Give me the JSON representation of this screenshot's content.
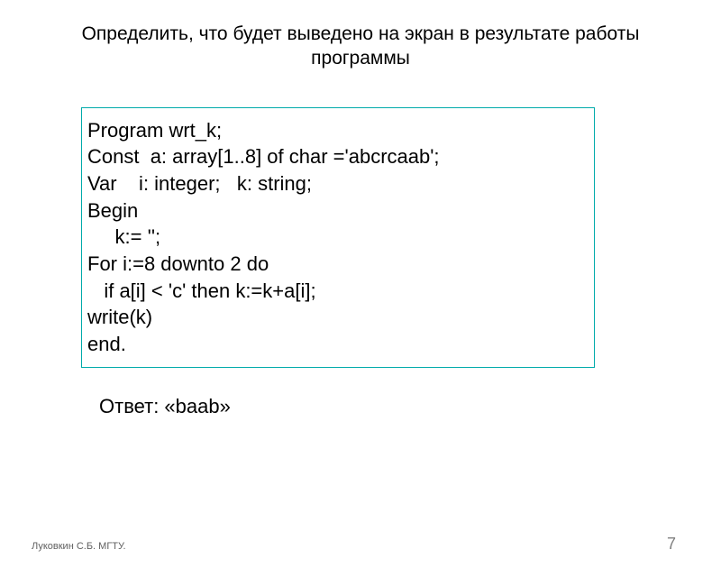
{
  "slide": {
    "title_line1": "Определить, что будет выведено на экран в результате работы",
    "title_line2": "программы",
    "title_fontsize": 21,
    "title_color": "#000000",
    "background_color": "#ffffff"
  },
  "code_box": {
    "border_color": "#00aaaa",
    "border_width": 1,
    "lines": [
      "Program wrt_k;",
      "Const  a: array[1..8] of char ='abcrcaab';",
      "Var    i: integer;   k: string;",
      "Begin",
      "     k:= '';",
      "For i:=8 downto 2 do",
      "   if a[i] < 'c' then k:=k+a[i];",
      "write(k)",
      "end."
    ],
    "fontsize": 22,
    "text_color": "#000000"
  },
  "answer": {
    "text": "Ответ:  «baab»",
    "fontsize": 22,
    "text_color": "#000000"
  },
  "footer": {
    "left_text": "Луковкин С.Б. МГТУ.",
    "left_fontsize": 11,
    "left_color": "#606060",
    "page_number": "7",
    "page_fontsize": 18,
    "page_color": "#808080"
  }
}
